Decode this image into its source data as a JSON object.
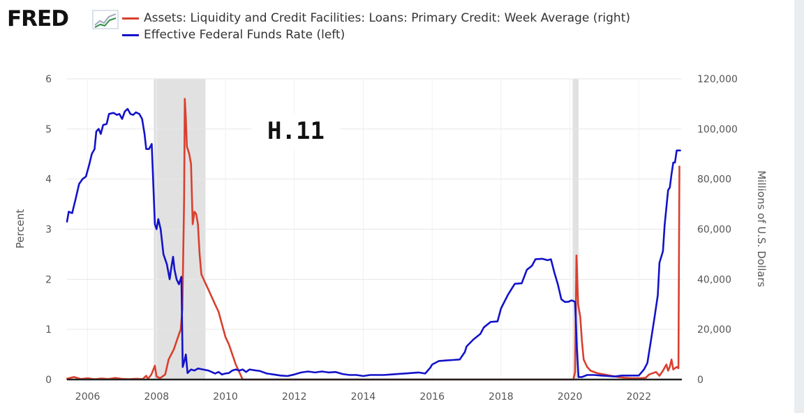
{
  "logo": {
    "text": "FRED",
    "icon": "trend-chart-icon"
  },
  "chart_data": {
    "type": "line",
    "annotation": "H.11",
    "x_ticks": [
      "2006",
      "2008",
      "2010",
      "2012",
      "2014",
      "2016",
      "2018",
      "2020",
      "2022"
    ],
    "x_range": [
      2005.4,
      2023.25
    ],
    "y_left": {
      "label": "Percent",
      "range": [
        0,
        6
      ],
      "ticks": [
        "0",
        "1",
        "2",
        "3",
        "4",
        "5",
        "6"
      ]
    },
    "y_right": {
      "label": "Millions of U.S. Dollars",
      "range": [
        0,
        120000
      ],
      "ticks": [
        "0",
        "20,000",
        "40,000",
        "60,000",
        "80,000",
        "100,000",
        "120,000"
      ]
    },
    "grid": true,
    "recessions": [
      [
        2007.92,
        2009.42
      ],
      [
        2020.08,
        2020.25
      ]
    ],
    "series": [
      {
        "name": "Assets: Liquidity and Credit Facilities: Loans: Primary Credit: Week Average (right)",
        "axis": "right",
        "color": "#d93f2e",
        "points": [
          [
            2005.4,
            300
          ],
          [
            2005.6,
            1000
          ],
          [
            2005.8,
            200
          ],
          [
            2006.0,
            500
          ],
          [
            2006.2,
            150
          ],
          [
            2006.4,
            400
          ],
          [
            2006.6,
            200
          ],
          [
            2006.8,
            600
          ],
          [
            2007.0,
            250
          ],
          [
            2007.2,
            150
          ],
          [
            2007.4,
            300
          ],
          [
            2007.6,
            200
          ],
          [
            2007.7,
            1500
          ],
          [
            2007.75,
            200
          ],
          [
            2007.85,
            2000
          ],
          [
            2007.95,
            5500
          ],
          [
            2008.0,
            1200
          ],
          [
            2008.1,
            500
          ],
          [
            2008.25,
            2000
          ],
          [
            2008.35,
            8000
          ],
          [
            2008.5,
            12000
          ],
          [
            2008.6,
            16000
          ],
          [
            2008.7,
            20000
          ],
          [
            2008.75,
            28000
          ],
          [
            2008.8,
            72000
          ],
          [
            2008.82,
            112000
          ],
          [
            2008.85,
            104000
          ],
          [
            2008.88,
            93000
          ],
          [
            2008.95,
            90000
          ],
          [
            2009.0,
            86000
          ],
          [
            2009.05,
            62000
          ],
          [
            2009.1,
            67000
          ],
          [
            2009.15,
            66000
          ],
          [
            2009.2,
            62000
          ],
          [
            2009.25,
            50000
          ],
          [
            2009.3,
            42000
          ],
          [
            2009.4,
            39000
          ],
          [
            2009.5,
            36000
          ],
          [
            2009.6,
            33000
          ],
          [
            2009.7,
            30000
          ],
          [
            2009.8,
            27000
          ],
          [
            2009.9,
            22000
          ],
          [
            2010.0,
            17000
          ],
          [
            2010.1,
            14000
          ],
          [
            2010.2,
            10000
          ],
          [
            2010.3,
            6000
          ],
          [
            2010.4,
            3000
          ],
          [
            2010.5,
            0
          ],
          [
            2011.0,
            0
          ],
          [
            2015.0,
            0
          ],
          [
            2019.8,
            0
          ],
          [
            2020.1,
            0
          ],
          [
            2020.15,
            3000
          ],
          [
            2020.19,
            49500
          ],
          [
            2020.24,
            30000
          ],
          [
            2020.3,
            25000
          ],
          [
            2020.35,
            15000
          ],
          [
            2020.4,
            8000
          ],
          [
            2020.5,
            5000
          ],
          [
            2020.6,
            3500
          ],
          [
            2020.8,
            2500
          ],
          [
            2021.0,
            2000
          ],
          [
            2021.2,
            1500
          ],
          [
            2021.4,
            1000
          ],
          [
            2021.6,
            700
          ],
          [
            2021.8,
            500
          ],
          [
            2022.0,
            500
          ],
          [
            2022.2,
            700
          ],
          [
            2022.3,
            2000
          ],
          [
            2022.5,
            3000
          ],
          [
            2022.6,
            1500
          ],
          [
            2022.7,
            3500
          ],
          [
            2022.8,
            6000
          ],
          [
            2022.85,
            3500
          ],
          [
            2022.9,
            5000
          ],
          [
            2022.95,
            8000
          ],
          [
            2023.0,
            4000
          ],
          [
            2023.1,
            5000
          ],
          [
            2023.15,
            4500
          ],
          [
            2023.18,
            85000
          ]
        ]
      },
      {
        "name": "Effective Federal Funds Rate (left)",
        "axis": "left",
        "color": "#1212c9",
        "points": [
          [
            2005.4,
            3.15
          ],
          [
            2005.45,
            3.35
          ],
          [
            2005.55,
            3.32
          ],
          [
            2005.65,
            3.6
          ],
          [
            2005.75,
            3.9
          ],
          [
            2005.85,
            4.0
          ],
          [
            2005.95,
            4.05
          ],
          [
            2006.05,
            4.3
          ],
          [
            2006.12,
            4.5
          ],
          [
            2006.2,
            4.6
          ],
          [
            2006.25,
            4.95
          ],
          [
            2006.32,
            5.0
          ],
          [
            2006.38,
            4.9
          ],
          [
            2006.45,
            5.08
          ],
          [
            2006.55,
            5.1
          ],
          [
            2006.62,
            5.3
          ],
          [
            2006.75,
            5.32
          ],
          [
            2006.85,
            5.28
          ],
          [
            2006.92,
            5.3
          ],
          [
            2007.0,
            5.2
          ],
          [
            2007.08,
            5.35
          ],
          [
            2007.16,
            5.4
          ],
          [
            2007.24,
            5.3
          ],
          [
            2007.32,
            5.28
          ],
          [
            2007.4,
            5.33
          ],
          [
            2007.5,
            5.3
          ],
          [
            2007.58,
            5.2
          ],
          [
            2007.65,
            4.9
          ],
          [
            2007.7,
            4.6
          ],
          [
            2007.78,
            4.6
          ],
          [
            2007.86,
            4.7
          ],
          [
            2007.95,
            3.1
          ],
          [
            2008.0,
            3.0
          ],
          [
            2008.05,
            3.2
          ],
          [
            2008.12,
            3.0
          ],
          [
            2008.2,
            2.5
          ],
          [
            2008.3,
            2.3
          ],
          [
            2008.38,
            2.0
          ],
          [
            2008.42,
            2.2
          ],
          [
            2008.48,
            2.45
          ],
          [
            2008.52,
            2.2
          ],
          [
            2008.58,
            2.0
          ],
          [
            2008.65,
            1.9
          ],
          [
            2008.72,
            2.05
          ],
          [
            2008.76,
            0.25
          ],
          [
            2008.8,
            0.35
          ],
          [
            2008.85,
            0.5
          ],
          [
            2008.9,
            0.13
          ],
          [
            2009.0,
            0.2
          ],
          [
            2009.1,
            0.18
          ],
          [
            2009.2,
            0.22
          ],
          [
            2009.35,
            0.2
          ],
          [
            2009.5,
            0.18
          ],
          [
            2009.6,
            0.15
          ],
          [
            2009.7,
            0.12
          ],
          [
            2009.8,
            0.15
          ],
          [
            2009.9,
            0.1
          ],
          [
            2010.0,
            0.12
          ],
          [
            2010.1,
            0.13
          ],
          [
            2010.2,
            0.18
          ],
          [
            2010.3,
            0.2
          ],
          [
            2010.4,
            0.18
          ],
          [
            2010.5,
            0.2
          ],
          [
            2010.6,
            0.15
          ],
          [
            2010.7,
            0.2
          ],
          [
            2010.8,
            0.19
          ],
          [
            2010.9,
            0.18
          ],
          [
            2011.0,
            0.17
          ],
          [
            2011.2,
            0.12
          ],
          [
            2011.4,
            0.1
          ],
          [
            2011.6,
            0.08
          ],
          [
            2011.8,
            0.07
          ],
          [
            2012.0,
            0.1
          ],
          [
            2012.2,
            0.14
          ],
          [
            2012.4,
            0.16
          ],
          [
            2012.6,
            0.14
          ],
          [
            2012.8,
            0.16
          ],
          [
            2013.0,
            0.14
          ],
          [
            2013.2,
            0.15
          ],
          [
            2013.4,
            0.11
          ],
          [
            2013.6,
            0.09
          ],
          [
            2013.8,
            0.09
          ],
          [
            2014.0,
            0.07
          ],
          [
            2014.2,
            0.09
          ],
          [
            2014.4,
            0.09
          ],
          [
            2014.6,
            0.09
          ],
          [
            2014.8,
            0.1
          ],
          [
            2015.0,
            0.11
          ],
          [
            2015.2,
            0.12
          ],
          [
            2015.4,
            0.13
          ],
          [
            2015.6,
            0.14
          ],
          [
            2015.8,
            0.12
          ],
          [
            2015.95,
            0.24
          ],
          [
            2016.0,
            0.3
          ],
          [
            2016.2,
            0.37
          ],
          [
            2016.4,
            0.38
          ],
          [
            2016.6,
            0.39
          ],
          [
            2016.8,
            0.4
          ],
          [
            2016.95,
            0.55
          ],
          [
            2017.0,
            0.66
          ],
          [
            2017.2,
            0.8
          ],
          [
            2017.4,
            0.91
          ],
          [
            2017.5,
            1.04
          ],
          [
            2017.7,
            1.15
          ],
          [
            2017.9,
            1.16
          ],
          [
            2018.0,
            1.42
          ],
          [
            2018.2,
            1.69
          ],
          [
            2018.4,
            1.91
          ],
          [
            2018.6,
            1.92
          ],
          [
            2018.75,
            2.19
          ],
          [
            2018.9,
            2.27
          ],
          [
            2019.0,
            2.4
          ],
          [
            2019.2,
            2.41
          ],
          [
            2019.35,
            2.38
          ],
          [
            2019.45,
            2.4
          ],
          [
            2019.55,
            2.13
          ],
          [
            2019.65,
            1.9
          ],
          [
            2019.75,
            1.6
          ],
          [
            2019.85,
            1.55
          ],
          [
            2019.95,
            1.55
          ],
          [
            2020.05,
            1.58
          ],
          [
            2020.15,
            1.55
          ],
          [
            2020.2,
            0.65
          ],
          [
            2020.25,
            0.05
          ],
          [
            2020.35,
            0.05
          ],
          [
            2020.5,
            0.09
          ],
          [
            2020.7,
            0.09
          ],
          [
            2020.9,
            0.08
          ],
          [
            2021.1,
            0.07
          ],
          [
            2021.3,
            0.06
          ],
          [
            2021.5,
            0.08
          ],
          [
            2021.7,
            0.08
          ],
          [
            2021.9,
            0.08
          ],
          [
            2022.0,
            0.08
          ],
          [
            2022.15,
            0.2
          ],
          [
            2022.25,
            0.33
          ],
          [
            2022.35,
            0.77
          ],
          [
            2022.45,
            1.21
          ],
          [
            2022.55,
            1.68
          ],
          [
            2022.6,
            2.33
          ],
          [
            2022.7,
            2.56
          ],
          [
            2022.75,
            3.08
          ],
          [
            2022.85,
            3.78
          ],
          [
            2022.9,
            3.83
          ],
          [
            2022.95,
            4.1
          ],
          [
            2023.0,
            4.33
          ],
          [
            2023.05,
            4.33
          ],
          [
            2023.1,
            4.57
          ],
          [
            2023.2,
            4.57
          ]
        ]
      }
    ]
  }
}
